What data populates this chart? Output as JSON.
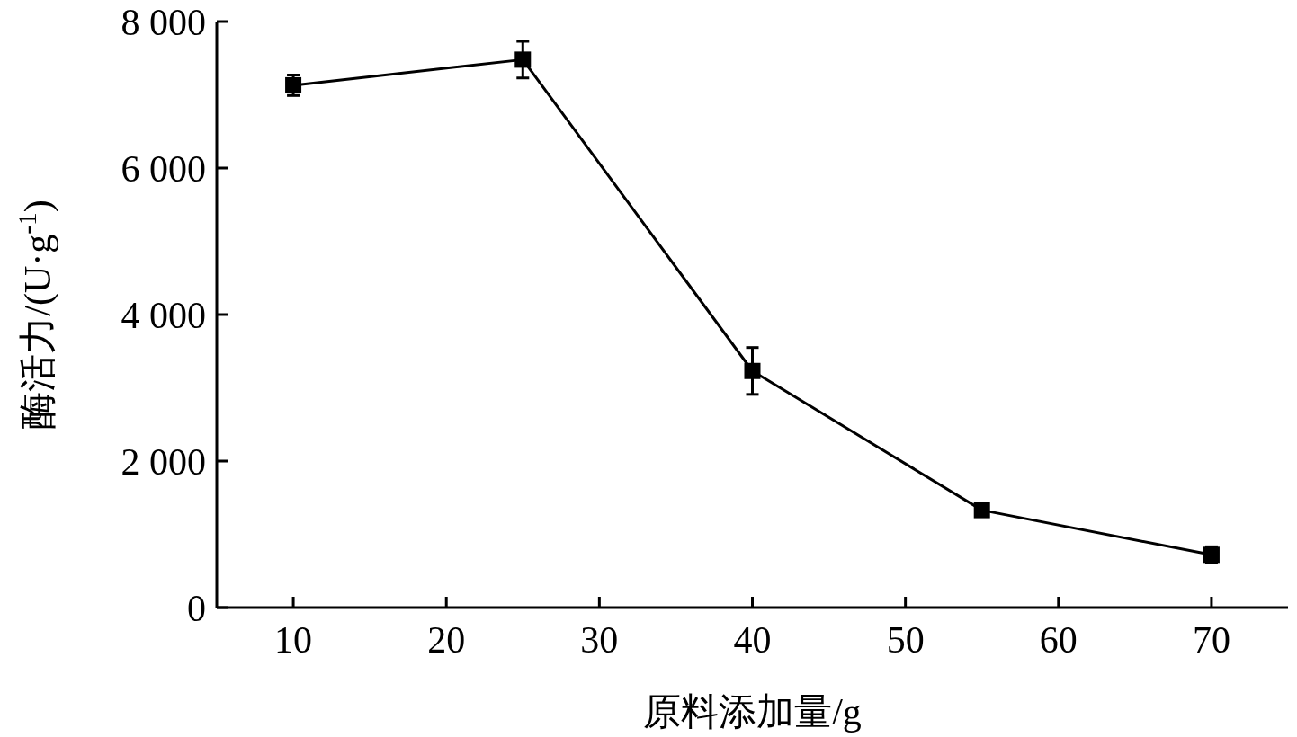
{
  "chart_data": {
    "type": "line",
    "xlabel": "原料添加量/g",
    "ylabel": "酶活力/(U·g$^{-1}$)",
    "x": [
      10,
      25,
      40,
      55,
      70
    ],
    "series": [
      {
        "color": "#000000",
        "values": [
          7130,
          7480,
          3230,
          1330,
          720
        ],
        "errors": [
          140,
          250,
          320,
          60,
          110
        ]
      }
    ],
    "xlim": [
      5,
      75
    ],
    "xticks": [
      10,
      20,
      30,
      40,
      50,
      60,
      70
    ],
    "ylim": [
      0,
      8000
    ],
    "yticks": [
      {
        "value": 0,
        "label": "0"
      },
      {
        "value": 2000,
        "label": "2 000"
      },
      {
        "value": 4000,
        "label": "4 000"
      },
      {
        "value": 6000,
        "label": "6 000"
      },
      {
        "value": 8000,
        "label": "8 000"
      }
    ],
    "marker": "square",
    "line_style": "solid"
  }
}
